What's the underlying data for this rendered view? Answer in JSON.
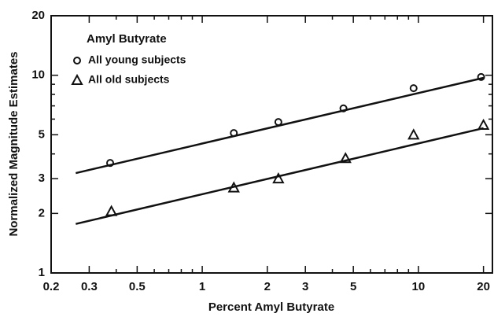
{
  "chart_data": {
    "type": "scatter",
    "legend_title": "Amyl Butyrate",
    "x_label": "Percent Amyl Butyrate",
    "y_label": "Normalized Magnitude Estimates",
    "log_x": true,
    "log_y": true,
    "xlim": [
      0.2,
      22
    ],
    "ylim": [
      1,
      20
    ],
    "xticks": [
      0.2,
      0.3,
      0.5,
      1,
      2,
      3,
      5,
      10,
      20
    ],
    "xminor": [
      0.4,
      0.6,
      0.7,
      0.8,
      0.9,
      4,
      6,
      7,
      8,
      9
    ],
    "yticks": [
      1,
      2,
      3,
      5,
      10,
      20
    ],
    "yminor": [
      4,
      6,
      7,
      8,
      9
    ],
    "legend": "upper left",
    "series": [
      {
        "name": "All young subjects",
        "marker": "circle",
        "color": "#111111",
        "x": [
          0.375,
          1.4,
          2.25,
          4.5,
          9.5,
          19.5
        ],
        "values": [
          3.6,
          5.1,
          5.8,
          6.8,
          8.6,
          9.8
        ],
        "fit_x": [
          0.26,
          20
        ],
        "fit_y": [
          3.2,
          9.7
        ]
      },
      {
        "name": "All old subjects",
        "marker": "triangle",
        "color": "#111111",
        "x": [
          0.38,
          1.4,
          2.25,
          4.6,
          9.5,
          20
        ],
        "values": [
          2.05,
          2.7,
          3.0,
          3.8,
          5.0,
          5.6
        ],
        "fit_x": [
          0.26,
          20
        ],
        "fit_y": [
          1.77,
          5.4
        ]
      }
    ]
  }
}
